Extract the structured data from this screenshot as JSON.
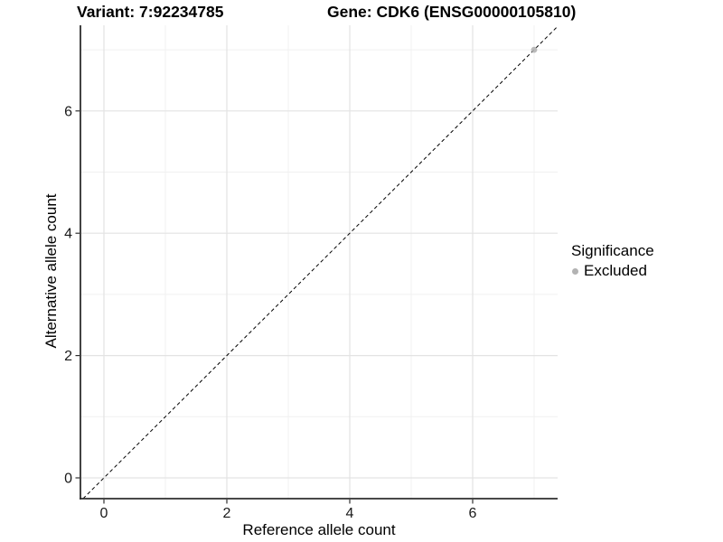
{
  "titles": {
    "variant": "Variant: 7:92234785",
    "gene": "Gene: CDK6 (ENSG00000105810)"
  },
  "chart_data": {
    "type": "scatter",
    "xlabel": "Reference allele count",
    "ylabel": "Alternative allele count",
    "xlim": [
      -0.38,
      7.38
    ],
    "ylim": [
      -0.34,
      7.4
    ],
    "x_ticks": [
      0,
      2,
      4,
      6
    ],
    "y_ticks": [
      0,
      2,
      4,
      6
    ],
    "minor_gridlines": [
      1,
      3,
      5,
      7
    ],
    "grid": "major-and-minor, white panel background",
    "identity_line": {
      "equation": "y = x",
      "style": "dashed",
      "color": "#000000"
    },
    "series": [
      {
        "name": "Excluded",
        "color": "#b3b3b3",
        "points": [
          {
            "x": 7,
            "y": 7
          }
        ]
      }
    ],
    "legend": {
      "title": "Significance",
      "position": "right",
      "items": [
        {
          "label": "Excluded",
          "color": "#b3b3b3"
        }
      ]
    },
    "colors": {
      "axis_line": "#2e2e2e",
      "major_grid": "#e3e3e3",
      "minor_grid": "#f0f0f0",
      "tick_text": "#1a1a1a"
    }
  }
}
